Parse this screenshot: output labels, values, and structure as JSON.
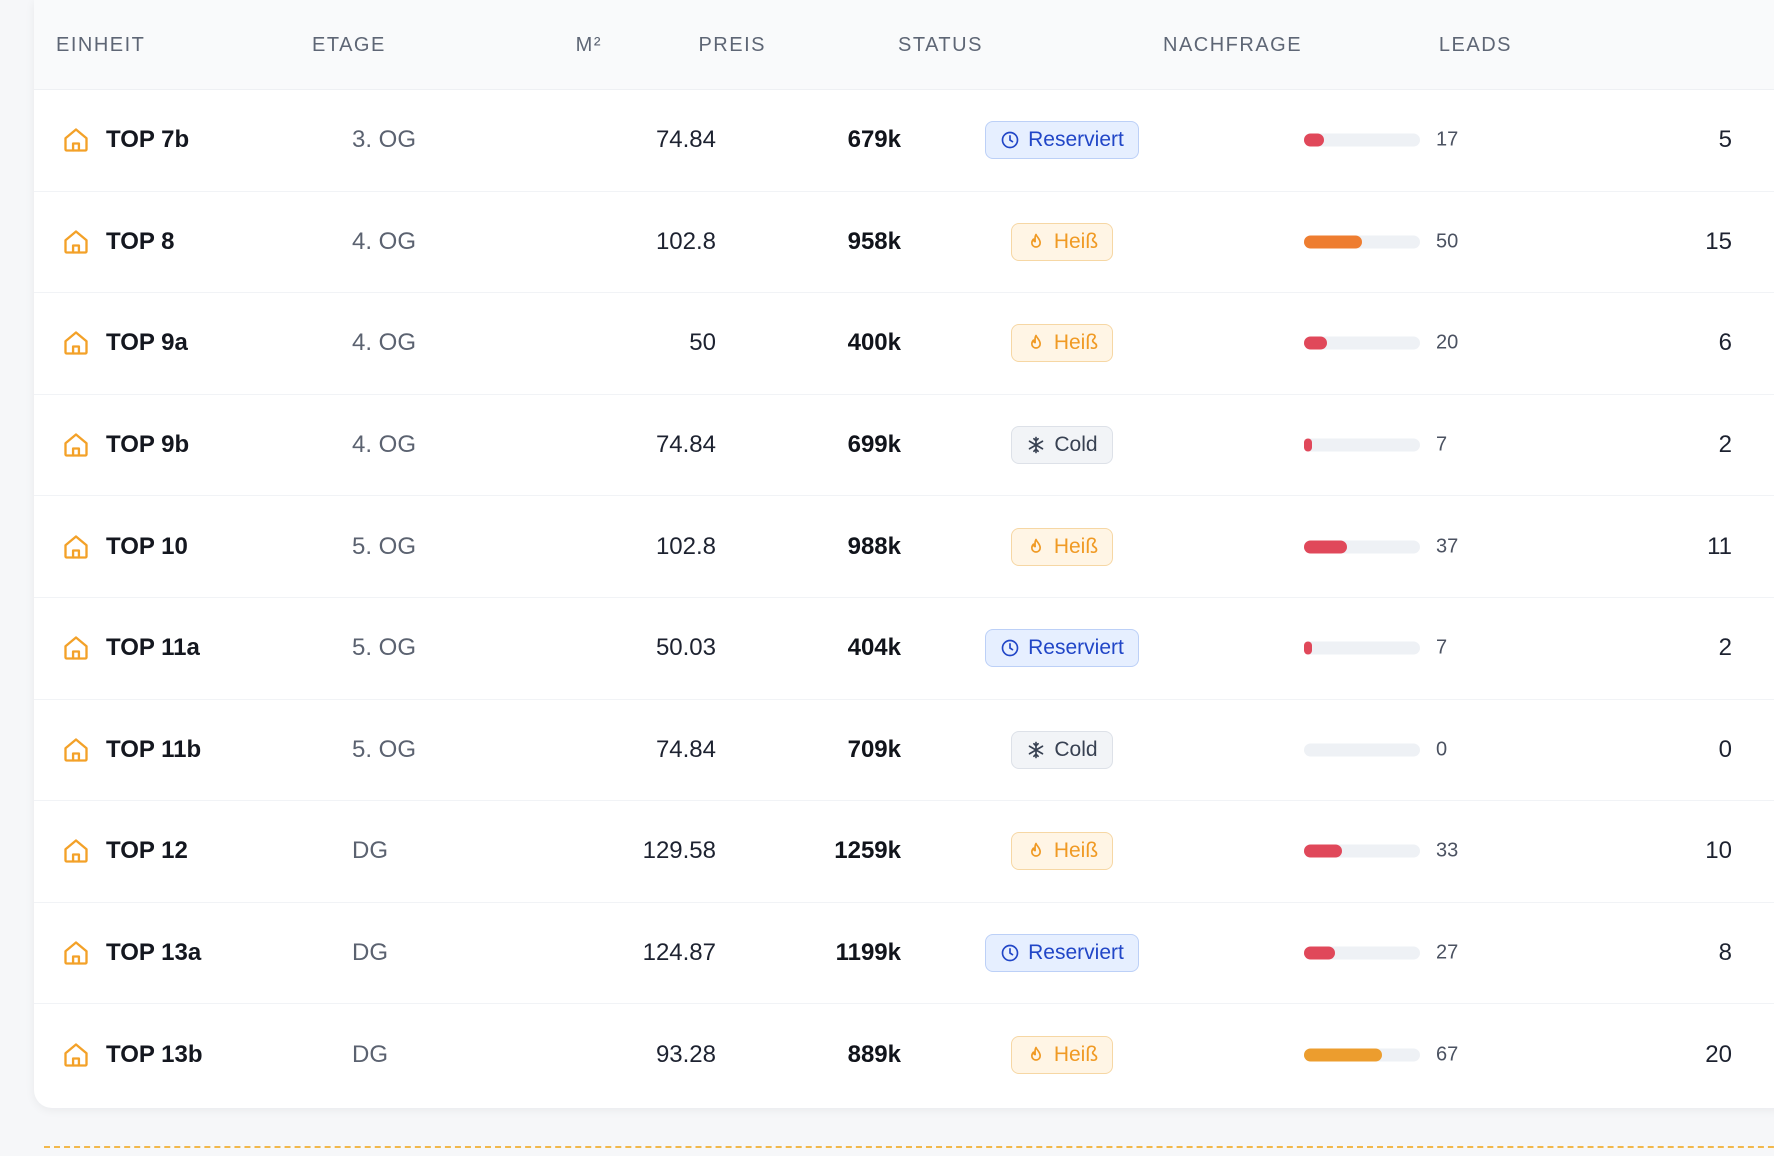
{
  "table": {
    "headers": {
      "unit": "EINHEIT",
      "floor": "ETAGE",
      "area": "M²",
      "price": "PREIS",
      "status": "STATUS",
      "demand": "NACHFRAGE",
      "leads": "LEADS"
    },
    "status_colors": {
      "reserved": "#2146c7",
      "hot": "#f09a24",
      "cold": "#384152"
    },
    "demand_colors": {
      "low": "#e0485a",
      "mid": "#ee7d30",
      "high": "#ec9d2e"
    },
    "rows": [
      {
        "unit": "TOP 7b",
        "floor": "3. OG",
        "area": "74.84",
        "price": "679k",
        "status": "Reserviert",
        "status_type": "reserved",
        "status_icon": "clock-icon",
        "demand": 17,
        "demand_label": "17",
        "leads": "5"
      },
      {
        "unit": "TOP 8",
        "floor": "4. OG",
        "area": "102.8",
        "price": "958k",
        "status": "Heiß",
        "status_type": "hot",
        "status_icon": "flame-icon",
        "demand": 50,
        "demand_label": "50",
        "leads": "15"
      },
      {
        "unit": "TOP 9a",
        "floor": "4. OG",
        "area": "50",
        "price": "400k",
        "status": "Heiß",
        "status_type": "hot",
        "status_icon": "flame-icon",
        "demand": 20,
        "demand_label": "20",
        "leads": "6"
      },
      {
        "unit": "TOP 9b",
        "floor": "4. OG",
        "area": "74.84",
        "price": "699k",
        "status": "Cold",
        "status_type": "cold",
        "status_icon": "snowflake-icon",
        "demand": 7,
        "demand_label": "7",
        "leads": "2"
      },
      {
        "unit": "TOP 10",
        "floor": "5. OG",
        "area": "102.8",
        "price": "988k",
        "status": "Heiß",
        "status_type": "hot",
        "status_icon": "flame-icon",
        "demand": 37,
        "demand_label": "37",
        "leads": "11"
      },
      {
        "unit": "TOP 11a",
        "floor": "5. OG",
        "area": "50.03",
        "price": "404k",
        "status": "Reserviert",
        "status_type": "reserved",
        "status_icon": "clock-icon",
        "demand": 7,
        "demand_label": "7",
        "leads": "2"
      },
      {
        "unit": "TOP 11b",
        "floor": "5. OG",
        "area": "74.84",
        "price": "709k",
        "status": "Cold",
        "status_type": "cold",
        "status_icon": "snowflake-icon",
        "demand": 0,
        "demand_label": "0",
        "leads": "0"
      },
      {
        "unit": "TOP 12",
        "floor": "DG",
        "area": "129.58",
        "price": "1259k",
        "status": "Heiß",
        "status_type": "hot",
        "status_icon": "flame-icon",
        "demand": 33,
        "demand_label": "33",
        "leads": "10"
      },
      {
        "unit": "TOP 13a",
        "floor": "DG",
        "area": "124.87",
        "price": "1199k",
        "status": "Reserviert",
        "status_type": "reserved",
        "status_icon": "clock-icon",
        "demand": 27,
        "demand_label": "27",
        "leads": "8"
      },
      {
        "unit": "TOP 13b",
        "floor": "DG",
        "area": "93.28",
        "price": "889k",
        "status": "Heiß",
        "status_type": "hot",
        "status_icon": "flame-icon",
        "demand": 67,
        "demand_label": "67",
        "leads": "20"
      }
    ]
  }
}
